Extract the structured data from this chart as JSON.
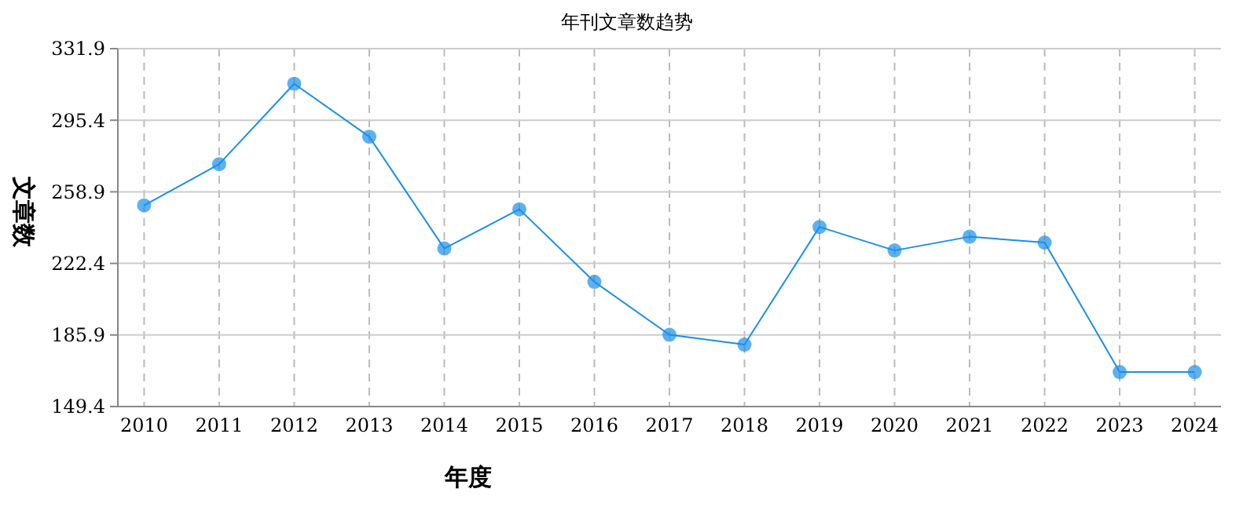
{
  "chart_data": {
    "type": "line",
    "title": "年刊文章数趋势",
    "xlabel": "年度",
    "ylabel": "文章数",
    "categories": [
      "2010",
      "2011",
      "2012",
      "2013",
      "2014",
      "2015",
      "2016",
      "2017",
      "2018",
      "2019",
      "2020",
      "2021",
      "2022",
      "2023",
      "2024"
    ],
    "series": [
      {
        "color": "#1a8fe8",
        "values": [
          252,
          273,
          314,
          287,
          230,
          250,
          213,
          186,
          181,
          241,
          229,
          236,
          233,
          167,
          167
        ]
      }
    ],
    "ylim": [
      149.4,
      331.9
    ],
    "yticks": [
      149.4,
      185.9,
      222.4,
      258.9,
      295.4,
      331.9
    ],
    "grid": true,
    "marker": "circle",
    "line_style": "solid"
  }
}
